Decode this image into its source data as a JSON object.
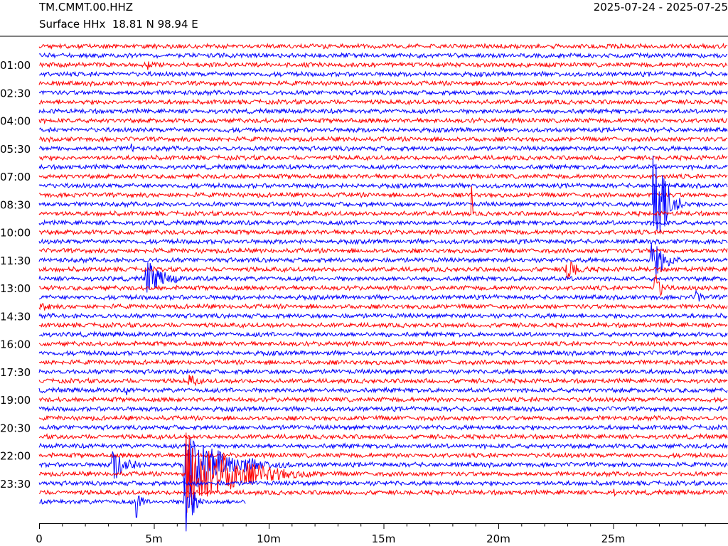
{
  "header": {
    "station": "TM.CMMT.00.HHZ",
    "location": "Surface HHx  18.81 N 98.94 E",
    "date_range": "2025-07-24 - 2025-07-25"
  },
  "chart_data": {
    "type": "line",
    "subtype": "helicorder",
    "title": "TM.CMMT.00.HHZ",
    "subtitle": "Surface HHx  18.81 N 98.94 E",
    "date_range": "2025-07-24 - 2025-07-25",
    "minutes_per_line": 30,
    "line_count": 50,
    "xlim": [
      0,
      30
    ],
    "x_tick_labels": [
      "0",
      "5m",
      "10m",
      "15m",
      "20m",
      "25m"
    ],
    "x_ticks_minutes": [
      0,
      5,
      10,
      15,
      20,
      25
    ],
    "y_tick_labels": [
      "01:00",
      "02:30",
      "04:00",
      "05:30",
      "07:00",
      "08:30",
      "10:00",
      "11:30",
      "13:00",
      "14:30",
      "16:00",
      "17:30",
      "19:00",
      "20:30",
      "22:00",
      "23:30"
    ],
    "colors": [
      "#ff0000",
      "#0000ff"
    ],
    "grid": false,
    "legend": "none",
    "events": [
      {
        "line": 1,
        "minute": 3.1,
        "amplitude": 5,
        "duration_min": 0.5
      },
      {
        "line": 2,
        "minute": 4.7,
        "amplitude": 10,
        "duration_min": 0.4
      },
      {
        "line": 4,
        "minute": 17.7,
        "amplitude": 4,
        "duration_min": 0.6
      },
      {
        "line": 11,
        "minute": 4.0,
        "amplitude": 14,
        "duration_min": 0.3
      },
      {
        "line": 17,
        "minute": 9.3,
        "amplitude": 5,
        "duration_min": 0.3
      },
      {
        "line": 17,
        "minute": 26.7,
        "amplitude": 120,
        "duration_min": 1.5
      },
      {
        "line": 18,
        "minute": 18.8,
        "amplitude": 150,
        "duration_min": 0.1
      },
      {
        "line": 23,
        "minute": 26.6,
        "amplitude": 35,
        "duration_min": 2.0
      },
      {
        "line": 24,
        "minute": 22.9,
        "amplitude": 18,
        "duration_min": 2.0
      },
      {
        "line": 25,
        "minute": 4.6,
        "amplitude": 30,
        "duration_min": 2.5
      },
      {
        "line": 26,
        "minute": 26.8,
        "amplitude": 28,
        "duration_min": 1.0
      },
      {
        "line": 27,
        "minute": 28.6,
        "amplitude": 10,
        "duration_min": 1.4
      },
      {
        "line": 28,
        "minute": 0.0,
        "amplitude": 9,
        "duration_min": 2.0
      },
      {
        "line": 36,
        "minute": 6.5,
        "amplitude": 12,
        "duration_min": 1.5
      },
      {
        "line": 37,
        "minute": 3.8,
        "amplitude": 12,
        "duration_min": 0.3
      },
      {
        "line": 45,
        "minute": 3.1,
        "amplitude": 30,
        "duration_min": 2.2
      },
      {
        "line": 45,
        "minute": 6.3,
        "amplitude": 45,
        "duration_min": 6.0
      },
      {
        "line": 46,
        "minute": 6.4,
        "amplitude": 60,
        "duration_min": 6.5
      },
      {
        "line": 48,
        "minute": 1.8,
        "amplitude": 6,
        "duration_min": 0.3
      },
      {
        "line": 48,
        "minute": 25.0,
        "amplitude": 9,
        "duration_min": 0.3
      },
      {
        "line": 49,
        "minute": 4.2,
        "amplitude": 28,
        "duration_min": 0.8
      },
      {
        "line": 49,
        "minute": 6.3,
        "amplitude": 70,
        "duration_min": 1.0
      }
    ],
    "last_line_end_minute": 9.0
  }
}
